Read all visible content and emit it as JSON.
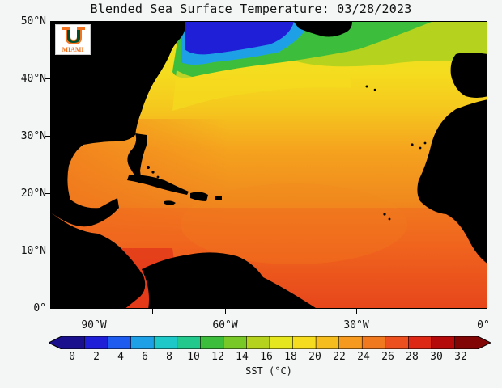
{
  "title": "Blended Sea Surface Temperature: 03/28/2023",
  "logo": {
    "text": "MIAMI",
    "icon": "u-letter-logo",
    "colors": {
      "green": "#005030",
      "orange": "#f47321"
    }
  },
  "map": {
    "lat_labels": [
      "50°N",
      "40°N",
      "30°N",
      "20°N",
      "10°N",
      "0°"
    ],
    "lon_labels": [
      "90°W",
      "60°W",
      "30°W",
      "0°"
    ],
    "land_color": "#000000"
  },
  "colorbar": {
    "ticks": [
      "0",
      "2",
      "4",
      "6",
      "8",
      "10",
      "12",
      "14",
      "16",
      "18",
      "20",
      "22",
      "24",
      "26",
      "28",
      "30",
      "32"
    ],
    "title": "SST (°C)",
    "colors": [
      "#1a0f8c",
      "#1f1fd8",
      "#1e5cf0",
      "#1ea0e6",
      "#1ec8c8",
      "#22c88c",
      "#3cbe3c",
      "#78c828",
      "#b4d21e",
      "#e6e61e",
      "#f5dc1e",
      "#f5be1e",
      "#f59a1e",
      "#f0781e",
      "#eb501e",
      "#dc2814",
      "#b40a0a",
      "#820505"
    ]
  }
}
